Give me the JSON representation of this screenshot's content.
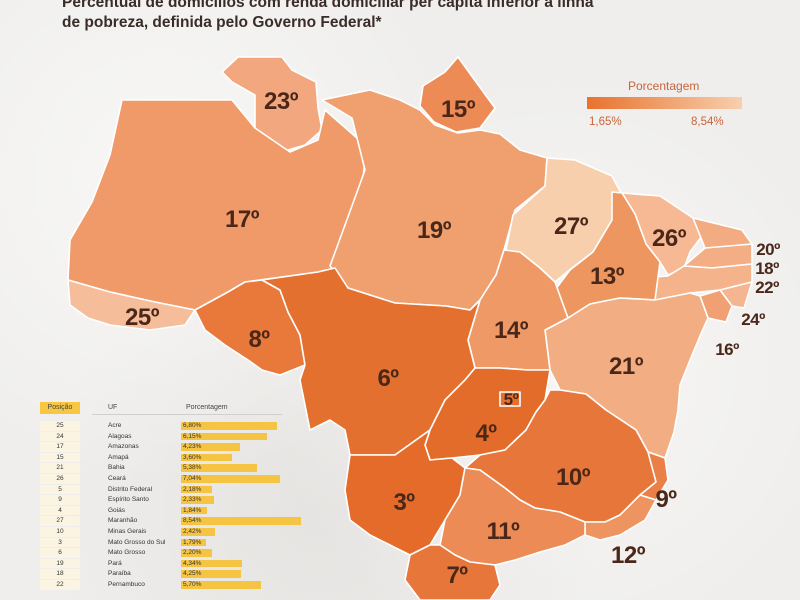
{
  "title": {
    "line1": "Percentual de domicílios com renda domiciliar per capita inferior à linha",
    "line2": "de pobreza, definida pelo Governo Federal*"
  },
  "legend": {
    "title": "Porcentagem",
    "min_label": "1,65%",
    "max_label": "8,54%",
    "min_value": 1.65,
    "max_value": 8.54,
    "low_color": "#e8722e",
    "high_color": "#f8cfad"
  },
  "map_labels": {
    "rr": "23º",
    "ap": "15º",
    "am": "17º",
    "pa": "19º",
    "ma": "27º",
    "ce": "26º",
    "rn": "20º",
    "pb": "18º",
    "pe": "22º",
    "al": "24º",
    "se": "16º",
    "pi": "13º",
    "to": "14º",
    "ba": "21º",
    "ac": "25º",
    "ro": "8º",
    "mt": "6º",
    "df": "5º",
    "go": "4º",
    "mg": "10º",
    "es": "9º",
    "rj": "12º",
    "ms": "3º",
    "sp": "11º",
    "pr": "7º"
  },
  "table": {
    "headers": {
      "position": "Posição",
      "uf": "UF",
      "percent": "Porcentagem"
    },
    "rows": [
      {
        "pos": "25",
        "uf": "Acre",
        "pct": "6,80%",
        "value": 6.8
      },
      {
        "pos": "24",
        "uf": "Alagoas",
        "pct": "6,15%",
        "value": 6.15
      },
      {
        "pos": "17",
        "uf": "Amazonas",
        "pct": "4,23%",
        "value": 4.23
      },
      {
        "pos": "15",
        "uf": "Amapá",
        "pct": "3,60%",
        "value": 3.6
      },
      {
        "pos": "21",
        "uf": "Bahia",
        "pct": "5,38%",
        "value": 5.38
      },
      {
        "pos": "26",
        "uf": "Ceará",
        "pct": "7,04%",
        "value": 7.04
      },
      {
        "pos": "5",
        "uf": "Distrito Federal",
        "pct": "2,18%",
        "value": 2.18
      },
      {
        "pos": "9",
        "uf": "Espírito Santo",
        "pct": "2,33%",
        "value": 2.33
      },
      {
        "pos": "4",
        "uf": "Goiás",
        "pct": "1,84%",
        "value": 1.84
      },
      {
        "pos": "27",
        "uf": "Maranhão",
        "pct": "8,54%",
        "value": 8.54
      },
      {
        "pos": "10",
        "uf": "Minas Gerais",
        "pct": "2,42%",
        "value": 2.42
      },
      {
        "pos": "3",
        "uf": "Mato Grosso do Sul",
        "pct": "1,79%",
        "value": 1.79
      },
      {
        "pos": "6",
        "uf": "Mato Grosso",
        "pct": "2,20%",
        "value": 2.2
      },
      {
        "pos": "19",
        "uf": "Pará",
        "pct": "4,34%",
        "value": 4.34
      },
      {
        "pos": "18",
        "uf": "Paraíba",
        "pct": "4,25%",
        "value": 4.25
      },
      {
        "pos": "22",
        "uf": "Pernambuco",
        "pct": "5,70%",
        "value": 5.7
      }
    ]
  }
}
